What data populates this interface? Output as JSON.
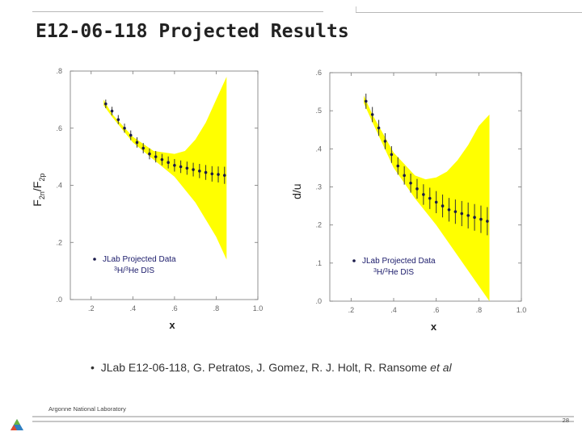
{
  "slide": {
    "title": "E12-06-118 Projected Results",
    "bullet_main": "JLab E12-06-118, G. Petratos, J. Gomez, R. J. Holt, R. Ransome ",
    "bullet_italic": "et al",
    "footer_org": "Argonne National Laboratory",
    "page_number": "28"
  },
  "chart_data": [
    {
      "type": "scatter",
      "xlabel": "x",
      "ylabel": "F2n/F2p",
      "xlim": [
        0.1,
        1.0
      ],
      "ylim": [
        0.0,
        0.8
      ],
      "xticks": [
        ".2",
        ".4",
        ".6",
        ".8",
        "1.0"
      ],
      "yticks": [
        ".0",
        ".2",
        ".4",
        ".6",
        ".8"
      ],
      "band_color": "#ffff00",
      "band_upper": [
        [
          0.26,
          0.7
        ],
        [
          0.3,
          0.65
        ],
        [
          0.4,
          0.57
        ],
        [
          0.5,
          0.52
        ],
        [
          0.6,
          0.51
        ],
        [
          0.65,
          0.52
        ],
        [
          0.7,
          0.56
        ],
        [
          0.75,
          0.62
        ],
        [
          0.8,
          0.7
        ],
        [
          0.85,
          0.78
        ]
      ],
      "band_lower": [
        [
          0.85,
          0.14
        ],
        [
          0.8,
          0.22
        ],
        [
          0.7,
          0.34
        ],
        [
          0.6,
          0.43
        ],
        [
          0.5,
          0.49
        ],
        [
          0.4,
          0.55
        ],
        [
          0.3,
          0.64
        ],
        [
          0.26,
          0.68
        ]
      ],
      "legend": {
        "position": "bottom-left",
        "line1": "JLab  Projected  Data",
        "line2_sup": "3",
        "line2_a": "H/",
        "line2_sup2": "3",
        "line2_b": "He  DIS"
      },
      "points": [
        {
          "x": 0.27,
          "y": 0.685,
          "err": 0.015
        },
        {
          "x": 0.3,
          "y": 0.66,
          "err": 0.015
        },
        {
          "x": 0.33,
          "y": 0.63,
          "err": 0.016
        },
        {
          "x": 0.36,
          "y": 0.6,
          "err": 0.016
        },
        {
          "x": 0.39,
          "y": 0.575,
          "err": 0.017
        },
        {
          "x": 0.42,
          "y": 0.55,
          "err": 0.018
        },
        {
          "x": 0.45,
          "y": 0.53,
          "err": 0.018
        },
        {
          "x": 0.48,
          "y": 0.51,
          "err": 0.019
        },
        {
          "x": 0.51,
          "y": 0.5,
          "err": 0.02
        },
        {
          "x": 0.54,
          "y": 0.49,
          "err": 0.02
        },
        {
          "x": 0.57,
          "y": 0.48,
          "err": 0.021
        },
        {
          "x": 0.6,
          "y": 0.47,
          "err": 0.022
        },
        {
          "x": 0.63,
          "y": 0.465,
          "err": 0.022
        },
        {
          "x": 0.66,
          "y": 0.46,
          "err": 0.023
        },
        {
          "x": 0.69,
          "y": 0.455,
          "err": 0.024
        },
        {
          "x": 0.72,
          "y": 0.45,
          "err": 0.025
        },
        {
          "x": 0.75,
          "y": 0.445,
          "err": 0.026
        },
        {
          "x": 0.78,
          "y": 0.44,
          "err": 0.027
        },
        {
          "x": 0.81,
          "y": 0.438,
          "err": 0.028
        },
        {
          "x": 0.84,
          "y": 0.435,
          "err": 0.03
        }
      ]
    },
    {
      "type": "scatter",
      "xlabel": "x",
      "ylabel": "d/u",
      "xlim": [
        0.1,
        1.0
      ],
      "ylim": [
        0.0,
        0.6
      ],
      "xticks": [
        ".2",
        ".4",
        ".6",
        ".8",
        "1.0"
      ],
      "yticks": [
        ".0",
        ".1",
        ".2",
        ".3",
        ".4",
        ".5",
        ".6"
      ],
      "band_color": "#ffff00",
      "band_upper": [
        [
          0.26,
          0.54
        ],
        [
          0.3,
          0.49
        ],
        [
          0.4,
          0.39
        ],
        [
          0.5,
          0.33
        ],
        [
          0.55,
          0.32
        ],
        [
          0.6,
          0.325
        ],
        [
          0.65,
          0.34
        ],
        [
          0.7,
          0.37
        ],
        [
          0.75,
          0.41
        ],
        [
          0.8,
          0.46
        ],
        [
          0.85,
          0.49
        ]
      ],
      "band_lower": [
        [
          0.85,
          0.0
        ],
        [
          0.8,
          0.04
        ],
        [
          0.7,
          0.12
        ],
        [
          0.6,
          0.2
        ],
        [
          0.5,
          0.27
        ],
        [
          0.4,
          0.35
        ],
        [
          0.3,
          0.47
        ],
        [
          0.26,
          0.52
        ]
      ],
      "legend": {
        "position": "bottom-left",
        "line1": "JLab  Projected  Data",
        "line2_sup": "3",
        "line2_a": "H/",
        "line2_sup2": "3",
        "line2_b": "He  DIS"
      },
      "points": [
        {
          "x": 0.27,
          "y": 0.525,
          "err": 0.02
        },
        {
          "x": 0.3,
          "y": 0.49,
          "err": 0.02
        },
        {
          "x": 0.33,
          "y": 0.455,
          "err": 0.021
        },
        {
          "x": 0.36,
          "y": 0.42,
          "err": 0.021
        },
        {
          "x": 0.39,
          "y": 0.385,
          "err": 0.022
        },
        {
          "x": 0.42,
          "y": 0.355,
          "err": 0.023
        },
        {
          "x": 0.45,
          "y": 0.33,
          "err": 0.024
        },
        {
          "x": 0.48,
          "y": 0.31,
          "err": 0.025
        },
        {
          "x": 0.51,
          "y": 0.295,
          "err": 0.026
        },
        {
          "x": 0.54,
          "y": 0.28,
          "err": 0.027
        },
        {
          "x": 0.57,
          "y": 0.27,
          "err": 0.028
        },
        {
          "x": 0.6,
          "y": 0.26,
          "err": 0.029
        },
        {
          "x": 0.63,
          "y": 0.25,
          "err": 0.03
        },
        {
          "x": 0.66,
          "y": 0.24,
          "err": 0.031
        },
        {
          "x": 0.69,
          "y": 0.235,
          "err": 0.032
        },
        {
          "x": 0.72,
          "y": 0.23,
          "err": 0.033
        },
        {
          "x": 0.75,
          "y": 0.225,
          "err": 0.034
        },
        {
          "x": 0.78,
          "y": 0.22,
          "err": 0.035
        },
        {
          "x": 0.81,
          "y": 0.215,
          "err": 0.036
        },
        {
          "x": 0.84,
          "y": 0.21,
          "err": 0.037
        }
      ]
    }
  ]
}
